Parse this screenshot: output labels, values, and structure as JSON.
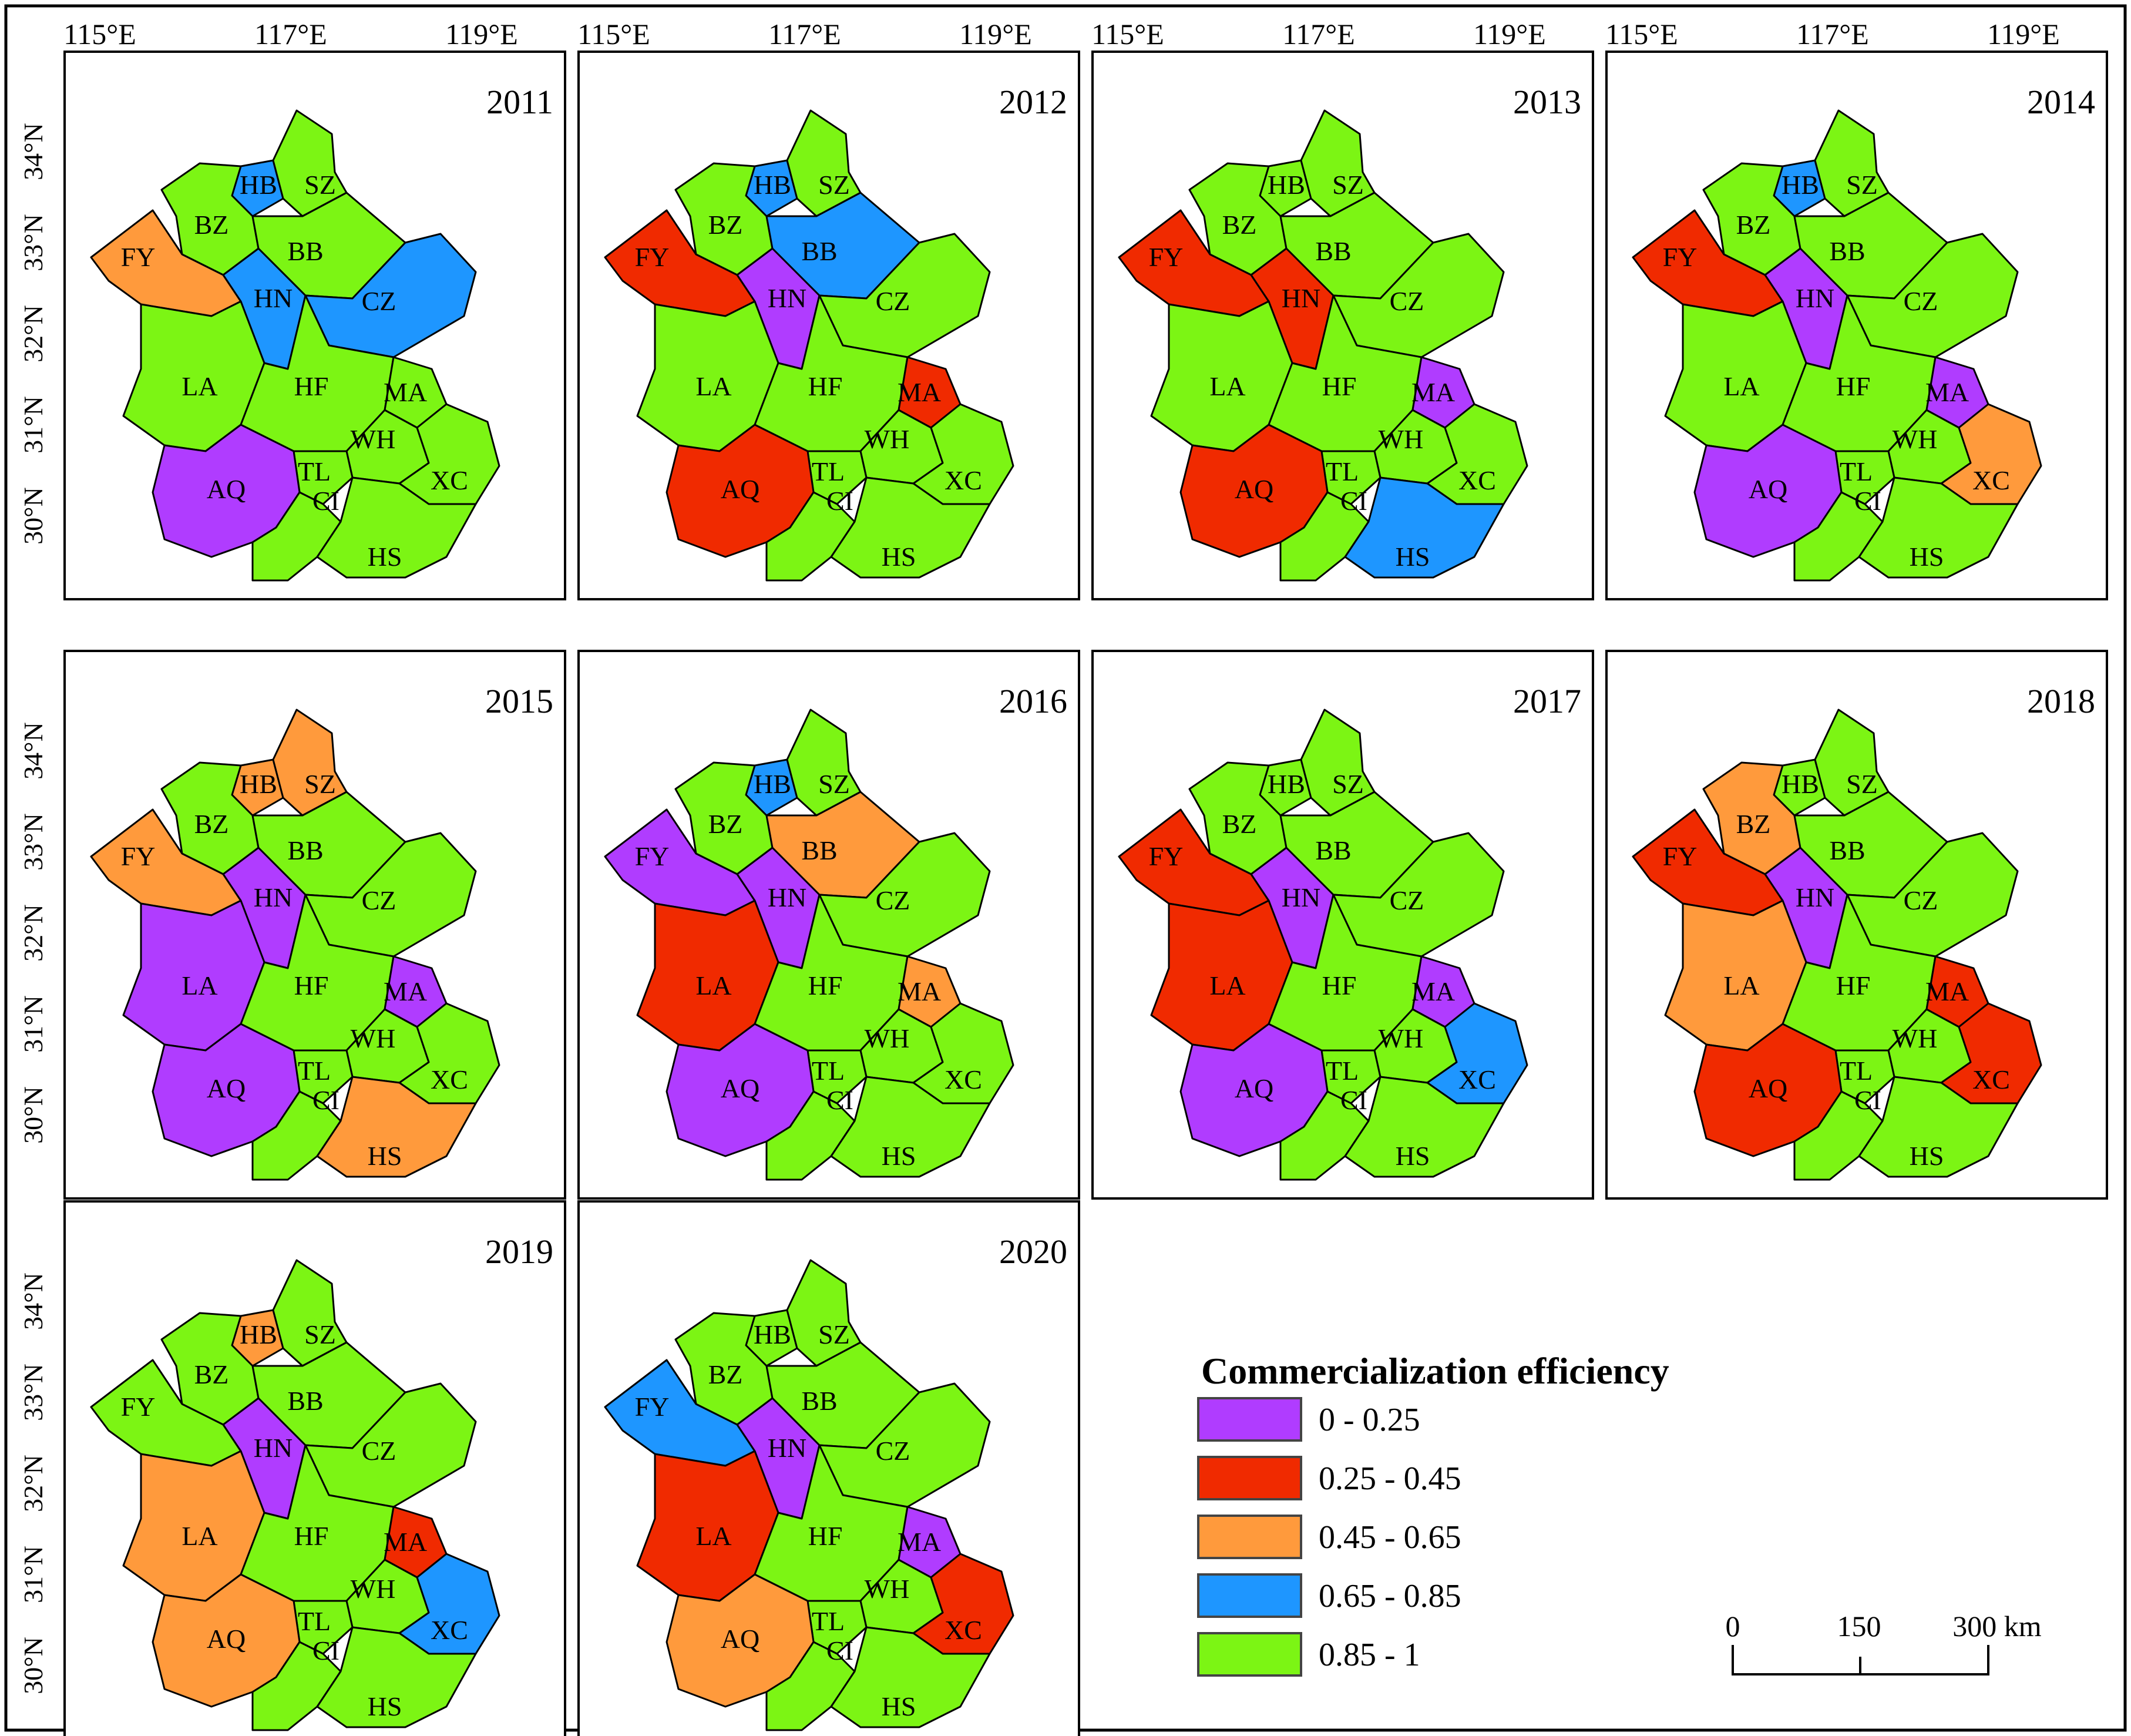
{
  "figure": {
    "lon_labels": [
      "115°E",
      "117°E",
      "119°E"
    ],
    "lat_labels": [
      "34°N",
      "33°N",
      "32°N",
      "31°N",
      "30°N"
    ]
  },
  "panels": [
    {
      "year": "2011",
      "classes": {
        "HB": 3,
        "SZ": 4,
        "BZ": 4,
        "FY": 2,
        "BB": 4,
        "HN": 3,
        "CZ": 3,
        "LA": 4,
        "HF": 4,
        "MA": 4,
        "WH": 4,
        "TL": 4,
        "AQ": 0,
        "CI": 4,
        "XC": 4,
        "HS": 4
      }
    },
    {
      "year": "2012",
      "classes": {
        "HB": 3,
        "SZ": 4,
        "BZ": 4,
        "FY": 1,
        "BB": 3,
        "HN": 0,
        "CZ": 4,
        "LA": 4,
        "HF": 4,
        "MA": 1,
        "WH": 4,
        "TL": 4,
        "AQ": 1,
        "CI": 4,
        "XC": 4,
        "HS": 4
      }
    },
    {
      "year": "2013",
      "classes": {
        "HB": 4,
        "SZ": 4,
        "BZ": 4,
        "FY": 1,
        "BB": 4,
        "HN": 1,
        "CZ": 4,
        "LA": 4,
        "HF": 4,
        "MA": 0,
        "WH": 4,
        "TL": 4,
        "AQ": 1,
        "CI": 4,
        "XC": 4,
        "HS": 3
      }
    },
    {
      "year": "2014",
      "classes": {
        "HB": 3,
        "SZ": 4,
        "BZ": 4,
        "FY": 1,
        "BB": 4,
        "HN": 0,
        "CZ": 4,
        "LA": 4,
        "HF": 4,
        "MA": 0,
        "WH": 4,
        "TL": 4,
        "AQ": 0,
        "CI": 4,
        "XC": 2,
        "HS": 4
      }
    },
    {
      "year": "2015",
      "classes": {
        "HB": 2,
        "SZ": 2,
        "BZ": 4,
        "FY": 2,
        "BB": 4,
        "HN": 0,
        "CZ": 4,
        "LA": 0,
        "HF": 4,
        "MA": 0,
        "WH": 4,
        "TL": 4,
        "AQ": 0,
        "CI": 4,
        "XC": 4,
        "HS": 2
      }
    },
    {
      "year": "2016",
      "classes": {
        "HB": 3,
        "SZ": 4,
        "BZ": 4,
        "FY": 0,
        "BB": 2,
        "HN": 0,
        "CZ": 4,
        "LA": 1,
        "HF": 4,
        "MA": 2,
        "WH": 4,
        "TL": 4,
        "AQ": 0,
        "CI": 4,
        "XC": 4,
        "HS": 4
      }
    },
    {
      "year": "2017",
      "classes": {
        "HB": 4,
        "SZ": 4,
        "BZ": 4,
        "FY": 1,
        "BB": 4,
        "HN": 0,
        "CZ": 4,
        "LA": 1,
        "HF": 4,
        "MA": 0,
        "WH": 4,
        "TL": 4,
        "AQ": 0,
        "CI": 4,
        "XC": 3,
        "HS": 4
      }
    },
    {
      "year": "2018",
      "classes": {
        "HB": 4,
        "SZ": 4,
        "BZ": 2,
        "FY": 1,
        "BB": 4,
        "HN": 0,
        "CZ": 4,
        "LA": 2,
        "HF": 4,
        "MA": 1,
        "WH": 4,
        "TL": 4,
        "AQ": 1,
        "CI": 4,
        "XC": 1,
        "HS": 4
      }
    },
    {
      "year": "2019",
      "classes": {
        "HB": 2,
        "SZ": 4,
        "BZ": 4,
        "FY": 4,
        "BB": 4,
        "HN": 0,
        "CZ": 4,
        "LA": 2,
        "HF": 4,
        "MA": 1,
        "WH": 4,
        "TL": 4,
        "AQ": 2,
        "CI": 4,
        "XC": 3,
        "HS": 4
      }
    },
    {
      "year": "2020",
      "classes": {
        "HB": 4,
        "SZ": 4,
        "BZ": 4,
        "FY": 3,
        "BB": 4,
        "HN": 0,
        "CZ": 4,
        "LA": 1,
        "HF": 4,
        "MA": 0,
        "WH": 4,
        "TL": 4,
        "AQ": 2,
        "CI": 4,
        "XC": 1,
        "HS": 4
      }
    }
  ],
  "legend": {
    "title": "Commercialization efficiency",
    "classes": [
      {
        "label": "0 - 0.25",
        "color": "#b03cff"
      },
      {
        "label": "0.25 - 0.45",
        "color": "#f02a00"
      },
      {
        "label": "0.45 - 0.65",
        "color": "#ff9a3c"
      },
      {
        "label": "0.65 - 0.85",
        "color": "#1e96ff"
      },
      {
        "label": "0.85 - 1",
        "color": "#7cf514"
      }
    ]
  },
  "scalebar": {
    "labels": [
      "0",
      "150",
      "300 km"
    ]
  }
}
